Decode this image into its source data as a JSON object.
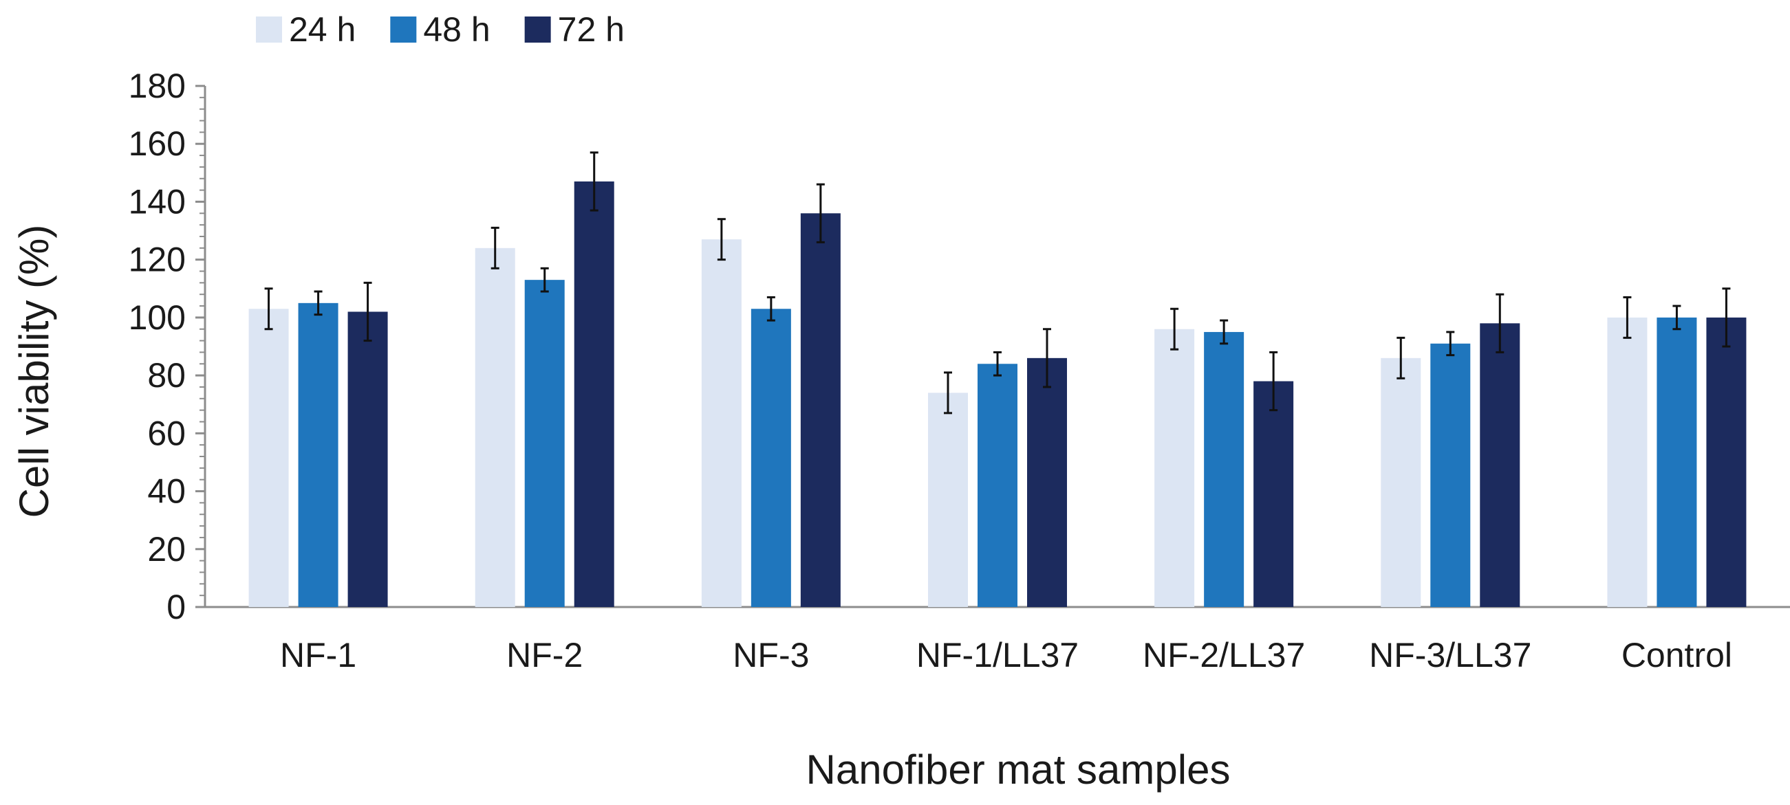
{
  "chart_data": {
    "type": "bar",
    "categories": [
      "NF-1",
      "NF-2",
      "NF-3",
      "NF-1/LL37",
      "NF-2/LL37",
      "NF-3/LL37",
      "Control"
    ],
    "series": [
      {
        "name": "24 h",
        "color": "#dce5f3",
        "values": [
          103,
          124,
          127,
          74,
          96,
          86,
          100
        ],
        "errors": [
          7,
          7,
          7,
          7,
          7,
          7,
          7
        ]
      },
      {
        "name": "48 h",
        "color": "#1f76bd",
        "values": [
          105,
          113,
          103,
          84,
          95,
          91,
          100
        ],
        "errors": [
          4,
          4,
          4,
          4,
          4,
          4,
          4
        ]
      },
      {
        "name": "72 h",
        "color": "#1c2b5e",
        "values": [
          102,
          147,
          136,
          86,
          78,
          98,
          100
        ],
        "errors": [
          10,
          10,
          10,
          10,
          10,
          10,
          10
        ]
      }
    ],
    "xlabel": "Nanofiber mat samples",
    "ylabel": "Cell viability (%)",
    "ylim": [
      0,
      180
    ],
    "yticks": [
      0,
      20,
      40,
      60,
      80,
      100,
      120,
      140,
      160,
      180
    ],
    "grid": false,
    "legend": "top-left"
  }
}
